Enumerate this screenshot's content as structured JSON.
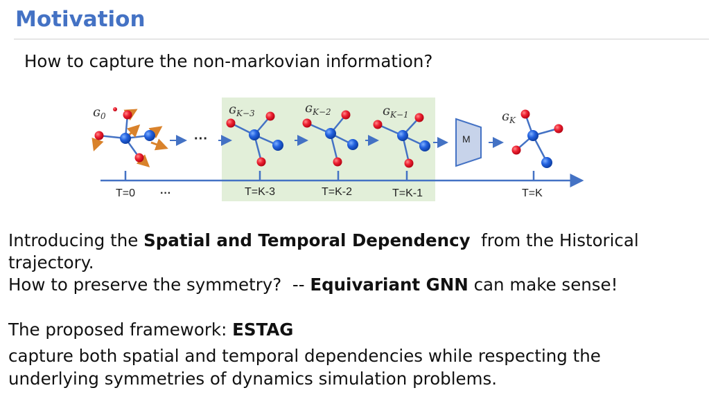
{
  "title": "Motivation",
  "question": "How to capture the non-markovian information?",
  "diagram": {
    "graph_labels": [
      {
        "base": "ɢ",
        "sub": "0"
      },
      {
        "base": "ɢ",
        "sub": "K−3"
      },
      {
        "base": "ɢ",
        "sub": "K−2"
      },
      {
        "base": "ɢ",
        "sub": "K−1"
      },
      {
        "base": "ɢ",
        "sub": "K"
      }
    ],
    "timeline_labels": [
      "T=0",
      "T=K-3",
      "T=K-2",
      "T=K-1",
      "T=K"
    ],
    "dots_label": "···",
    "model_label": "M",
    "colors": {
      "atom_red": "#e8182c",
      "atom_blue": "#1f5ad6",
      "highlight": "#e2efd9",
      "arrow": "#4472c4",
      "model": "#c7d3ea"
    }
  },
  "body": {
    "line1_pre": "Introducing the ",
    "line1_bold": "Spatial and Temporal Dependency",
    "line1_post": "  from the Historical",
    "line2": "trajectory.",
    "line3_pre": "How to preserve the symmetry?  -- ",
    "line3_bold": "Equivariant GNN",
    "line3_post": " can make sense!",
    "line4_pre": "The proposed framework: ",
    "line4_bold": "ESTAG",
    "line5": "capture both spatial and temporal dependencies while respecting the",
    "line6": "underlying symmetries of dynamics simulation problems."
  }
}
